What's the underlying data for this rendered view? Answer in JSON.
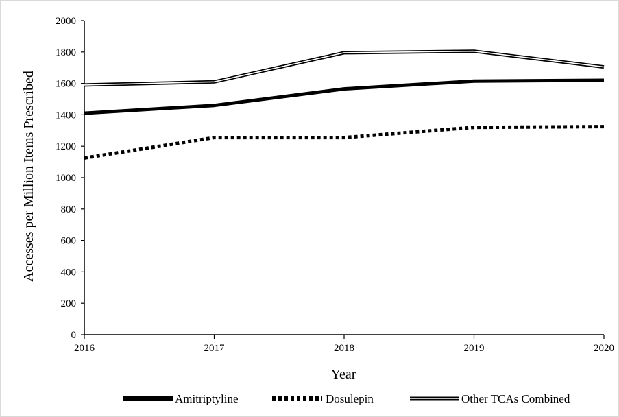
{
  "chart_data": {
    "type": "line",
    "title": "",
    "xlabel": "Year",
    "ylabel": "Accesses per Million Items Prescribed",
    "x": [
      2016,
      2017,
      2018,
      2019,
      2020
    ],
    "xticks": [
      "2016",
      "2017",
      "2018",
      "2019",
      "2020"
    ],
    "ylim": [
      0,
      2000
    ],
    "yticks": [
      "0",
      "200",
      "400",
      "600",
      "800",
      "1000",
      "1200",
      "1400",
      "1600",
      "1800",
      "2000"
    ],
    "grid": false,
    "legend_position": "bottom",
    "series": [
      {
        "name": "Amitriptyline",
        "style": "solid-thick",
        "values": [
          1410,
          1460,
          1565,
          1615,
          1620
        ]
      },
      {
        "name": "Dosulepin",
        "style": "dotted-thick",
        "values": [
          1125,
          1255,
          1255,
          1320,
          1325
        ]
      },
      {
        "name": "Other TCAs Combined",
        "style": "double-line",
        "values": [
          1590,
          1610,
          1795,
          1805,
          1705
        ]
      }
    ],
    "colors": {
      "line": "#000000",
      "axis": "#000000",
      "double_inner": "#ffffff"
    }
  }
}
